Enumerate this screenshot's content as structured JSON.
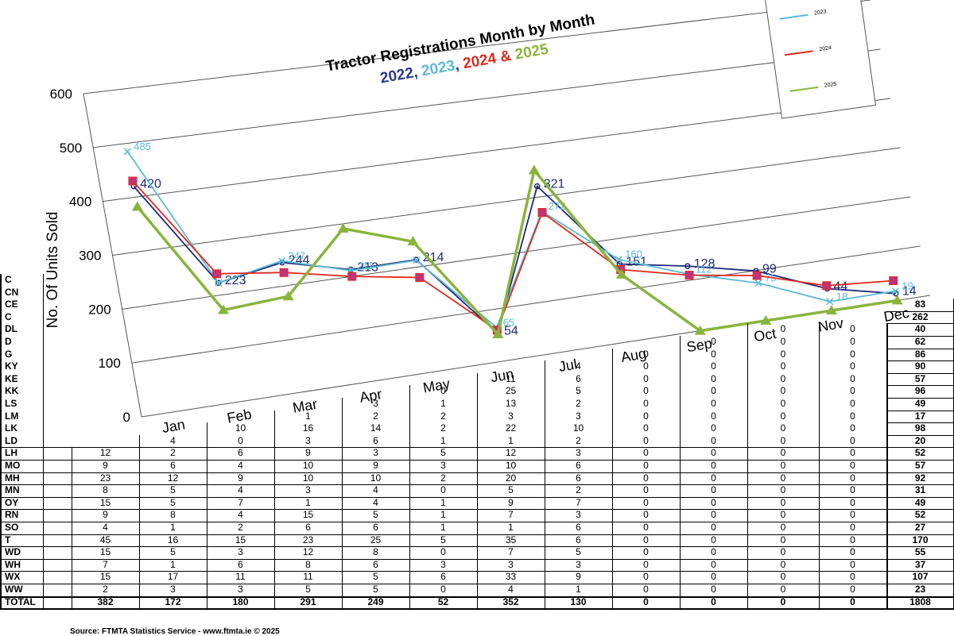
{
  "chart_data": {
    "type": "line",
    "title": "Tractor Registrations Month by Month",
    "subtitle_parts": [
      {
        "text": "2022",
        "color": "#2b3a8f"
      },
      {
        "text": ", ",
        "color": "#2b3a8f"
      },
      {
        "text": "2023",
        "color": "#5bbad5"
      },
      {
        "text": ", ",
        "color": "#2b3a8f"
      },
      {
        "text": "2024",
        "color": "#e02a1f"
      },
      {
        "text": " & ",
        "color": "#e02a1f"
      },
      {
        "text": "2025",
        "color": "#8ab43e"
      }
    ],
    "ylabel": "No. Of Units Sold",
    "yticks": [
      "0",
      "100",
      "200",
      "300",
      "400",
      "500",
      "600"
    ],
    "categories": [
      "Jan",
      "Feb",
      "Mar",
      "Apr",
      "May",
      "Jun",
      "Jul",
      "Aug",
      "Sep",
      "Oct",
      "Nov",
      "Dec"
    ],
    "legend_position": "top-right",
    "grid": true,
    "series": [
      {
        "name": "2022",
        "color": "#1f2a78",
        "labels": [
          "420",
          "223",
          "244",
          "213",
          "214",
          "54",
          "321",
          "151",
          "128",
          "99",
          "44",
          "14"
        ],
        "values": [
          420,
          223,
          244,
          213,
          214,
          54,
          321,
          151,
          128,
          99,
          44,
          14
        ]
      },
      {
        "name": "2023",
        "color": "#5bbad5",
        "labels": [
          "485",
          "",
          "247",
          "211",
          "",
          "65",
          "272",
          "160",
          "112",
          "75",
          "18",
          "19"
        ],
        "values": [
          485,
          223,
          247,
          211,
          213,
          65,
          272,
          160,
          112,
          75,
          18,
          19
        ]
      },
      {
        "name": "2024",
        "color": "#e02a1f",
        "labels": [],
        "values": [
          430,
          240,
          225,
          200,
          180,
          60,
          270,
          140,
          110,
          90,
          50,
          40
        ]
      },
      {
        "name": "2025",
        "color": "#8ab43e",
        "labels": [],
        "values": [
          382,
          172,
          180,
          291,
          249,
          52,
          352,
          130,
          0,
          0,
          0,
          0
        ]
      }
    ]
  },
  "legend": [
    {
      "label": "2023",
      "color": "#5bbad5"
    },
    {
      "label": "2024",
      "color": "#e02a1f"
    },
    {
      "label": "2025",
      "color": "#8ab43e"
    }
  ],
  "table": {
    "rows": [
      {
        "label": "C",
        "values": []
      },
      {
        "label": "CN",
        "values": []
      },
      {
        "label": "CE",
        "total": "83",
        "values": []
      },
      {
        "label": "C",
        "total": "262",
        "values": []
      },
      {
        "label": "DL",
        "total": "40",
        "values": [
          "",
          "",
          "",
          "",
          "",
          "",
          "",
          "",
          "",
          "0",
          "0"
        ]
      },
      {
        "label": "D",
        "total": "62",
        "values": [
          "",
          "",
          "",
          "",
          "",
          "",
          "",
          "",
          "0",
          "0",
          "0"
        ]
      },
      {
        "label": "G",
        "total": "86",
        "values": [
          "",
          "",
          "",
          "",
          "",
          "",
          "",
          "0",
          "0",
          "0",
          "0"
        ]
      },
      {
        "label": "KY",
        "total": "90",
        "values": [
          "",
          "",
          "",
          "",
          "",
          "",
          "4",
          "0",
          "0",
          "0",
          "0"
        ]
      },
      {
        "label": "KE",
        "total": "57",
        "values": [
          "",
          "",
          "",
          "",
          "",
          "11",
          "6",
          "0",
          "0",
          "0",
          "0"
        ]
      },
      {
        "label": "KK",
        "total": "96",
        "values": [
          "",
          "",
          "",
          "",
          "0",
          "25",
          "5",
          "0",
          "0",
          "0",
          "0"
        ]
      },
      {
        "label": "LS",
        "total": "49",
        "values": [
          "",
          "",
          "",
          "3",
          "1",
          "13",
          "2",
          "0",
          "0",
          "0",
          "0"
        ]
      },
      {
        "label": "LM",
        "total": "17",
        "values": [
          "",
          "",
          "1",
          "2",
          "2",
          "3",
          "3",
          "0",
          "0",
          "0",
          "0"
        ]
      },
      {
        "label": "LK",
        "total": "98",
        "values": [
          "",
          "10",
          "16",
          "14",
          "2",
          "22",
          "10",
          "0",
          "0",
          "0",
          "0"
        ]
      },
      {
        "label": "LD",
        "total": "20",
        "values": [
          "4",
          "0",
          "3",
          "6",
          "1",
          "1",
          "2",
          "0",
          "0",
          "0",
          "0"
        ]
      },
      {
        "label": "LH",
        "total": "52",
        "values": [
          "12",
          "2",
          "6",
          "9",
          "3",
          "5",
          "12",
          "3",
          "0",
          "0",
          "0",
          "0"
        ]
      },
      {
        "label": "MO",
        "total": "57",
        "values": [
          "9",
          "6",
          "4",
          "10",
          "9",
          "3",
          "10",
          "6",
          "0",
          "0",
          "0",
          "0"
        ]
      },
      {
        "label": "MH",
        "total": "92",
        "values": [
          "23",
          "12",
          "9",
          "10",
          "10",
          "2",
          "20",
          "6",
          "0",
          "0",
          "0",
          "0"
        ]
      },
      {
        "label": "MN",
        "total": "31",
        "values": [
          "8",
          "5",
          "4",
          "3",
          "4",
          "0",
          "5",
          "2",
          "0",
          "0",
          "0",
          "0"
        ]
      },
      {
        "label": "OY",
        "total": "49",
        "values": [
          "15",
          "5",
          "7",
          "1",
          "4",
          "1",
          "9",
          "7",
          "0",
          "0",
          "0",
          "0"
        ]
      },
      {
        "label": "RN",
        "total": "52",
        "values": [
          "9",
          "8",
          "4",
          "15",
          "5",
          "1",
          "7",
          "3",
          "0",
          "0",
          "0",
          "0"
        ]
      },
      {
        "label": "SO",
        "total": "27",
        "values": [
          "4",
          "1",
          "2",
          "6",
          "6",
          "1",
          "1",
          "6",
          "0",
          "0",
          "0",
          "0"
        ]
      },
      {
        "label": "T",
        "total": "170",
        "values": [
          "45",
          "16",
          "15",
          "23",
          "25",
          "5",
          "35",
          "6",
          "0",
          "0",
          "0",
          "0"
        ]
      },
      {
        "label": "WD",
        "total": "55",
        "values": [
          "15",
          "5",
          "3",
          "12",
          "8",
          "0",
          "7",
          "5",
          "0",
          "0",
          "0",
          "0"
        ]
      },
      {
        "label": "WH",
        "total": "37",
        "values": [
          "7",
          "1",
          "6",
          "8",
          "6",
          "3",
          "3",
          "3",
          "0",
          "0",
          "0",
          "0"
        ]
      },
      {
        "label": "WX",
        "total": "107",
        "values": [
          "15",
          "17",
          "11",
          "11",
          "5",
          "6",
          "33",
          "9",
          "0",
          "0",
          "0",
          "0"
        ]
      },
      {
        "label": "WW",
        "total": "23",
        "values": [
          "2",
          "3",
          "3",
          "5",
          "5",
          "0",
          "4",
          "1",
          "0",
          "0",
          "0",
          "0"
        ]
      },
      {
        "label": "TOTAL",
        "total": "1808",
        "values": [
          "382",
          "172",
          "180",
          "291",
          "249",
          "52",
          "352",
          "130",
          "0",
          "0",
          "0",
          "0"
        ]
      }
    ]
  },
  "source": "Source: FTMTA Statistics Service - www.ftmta.ie © 2025"
}
